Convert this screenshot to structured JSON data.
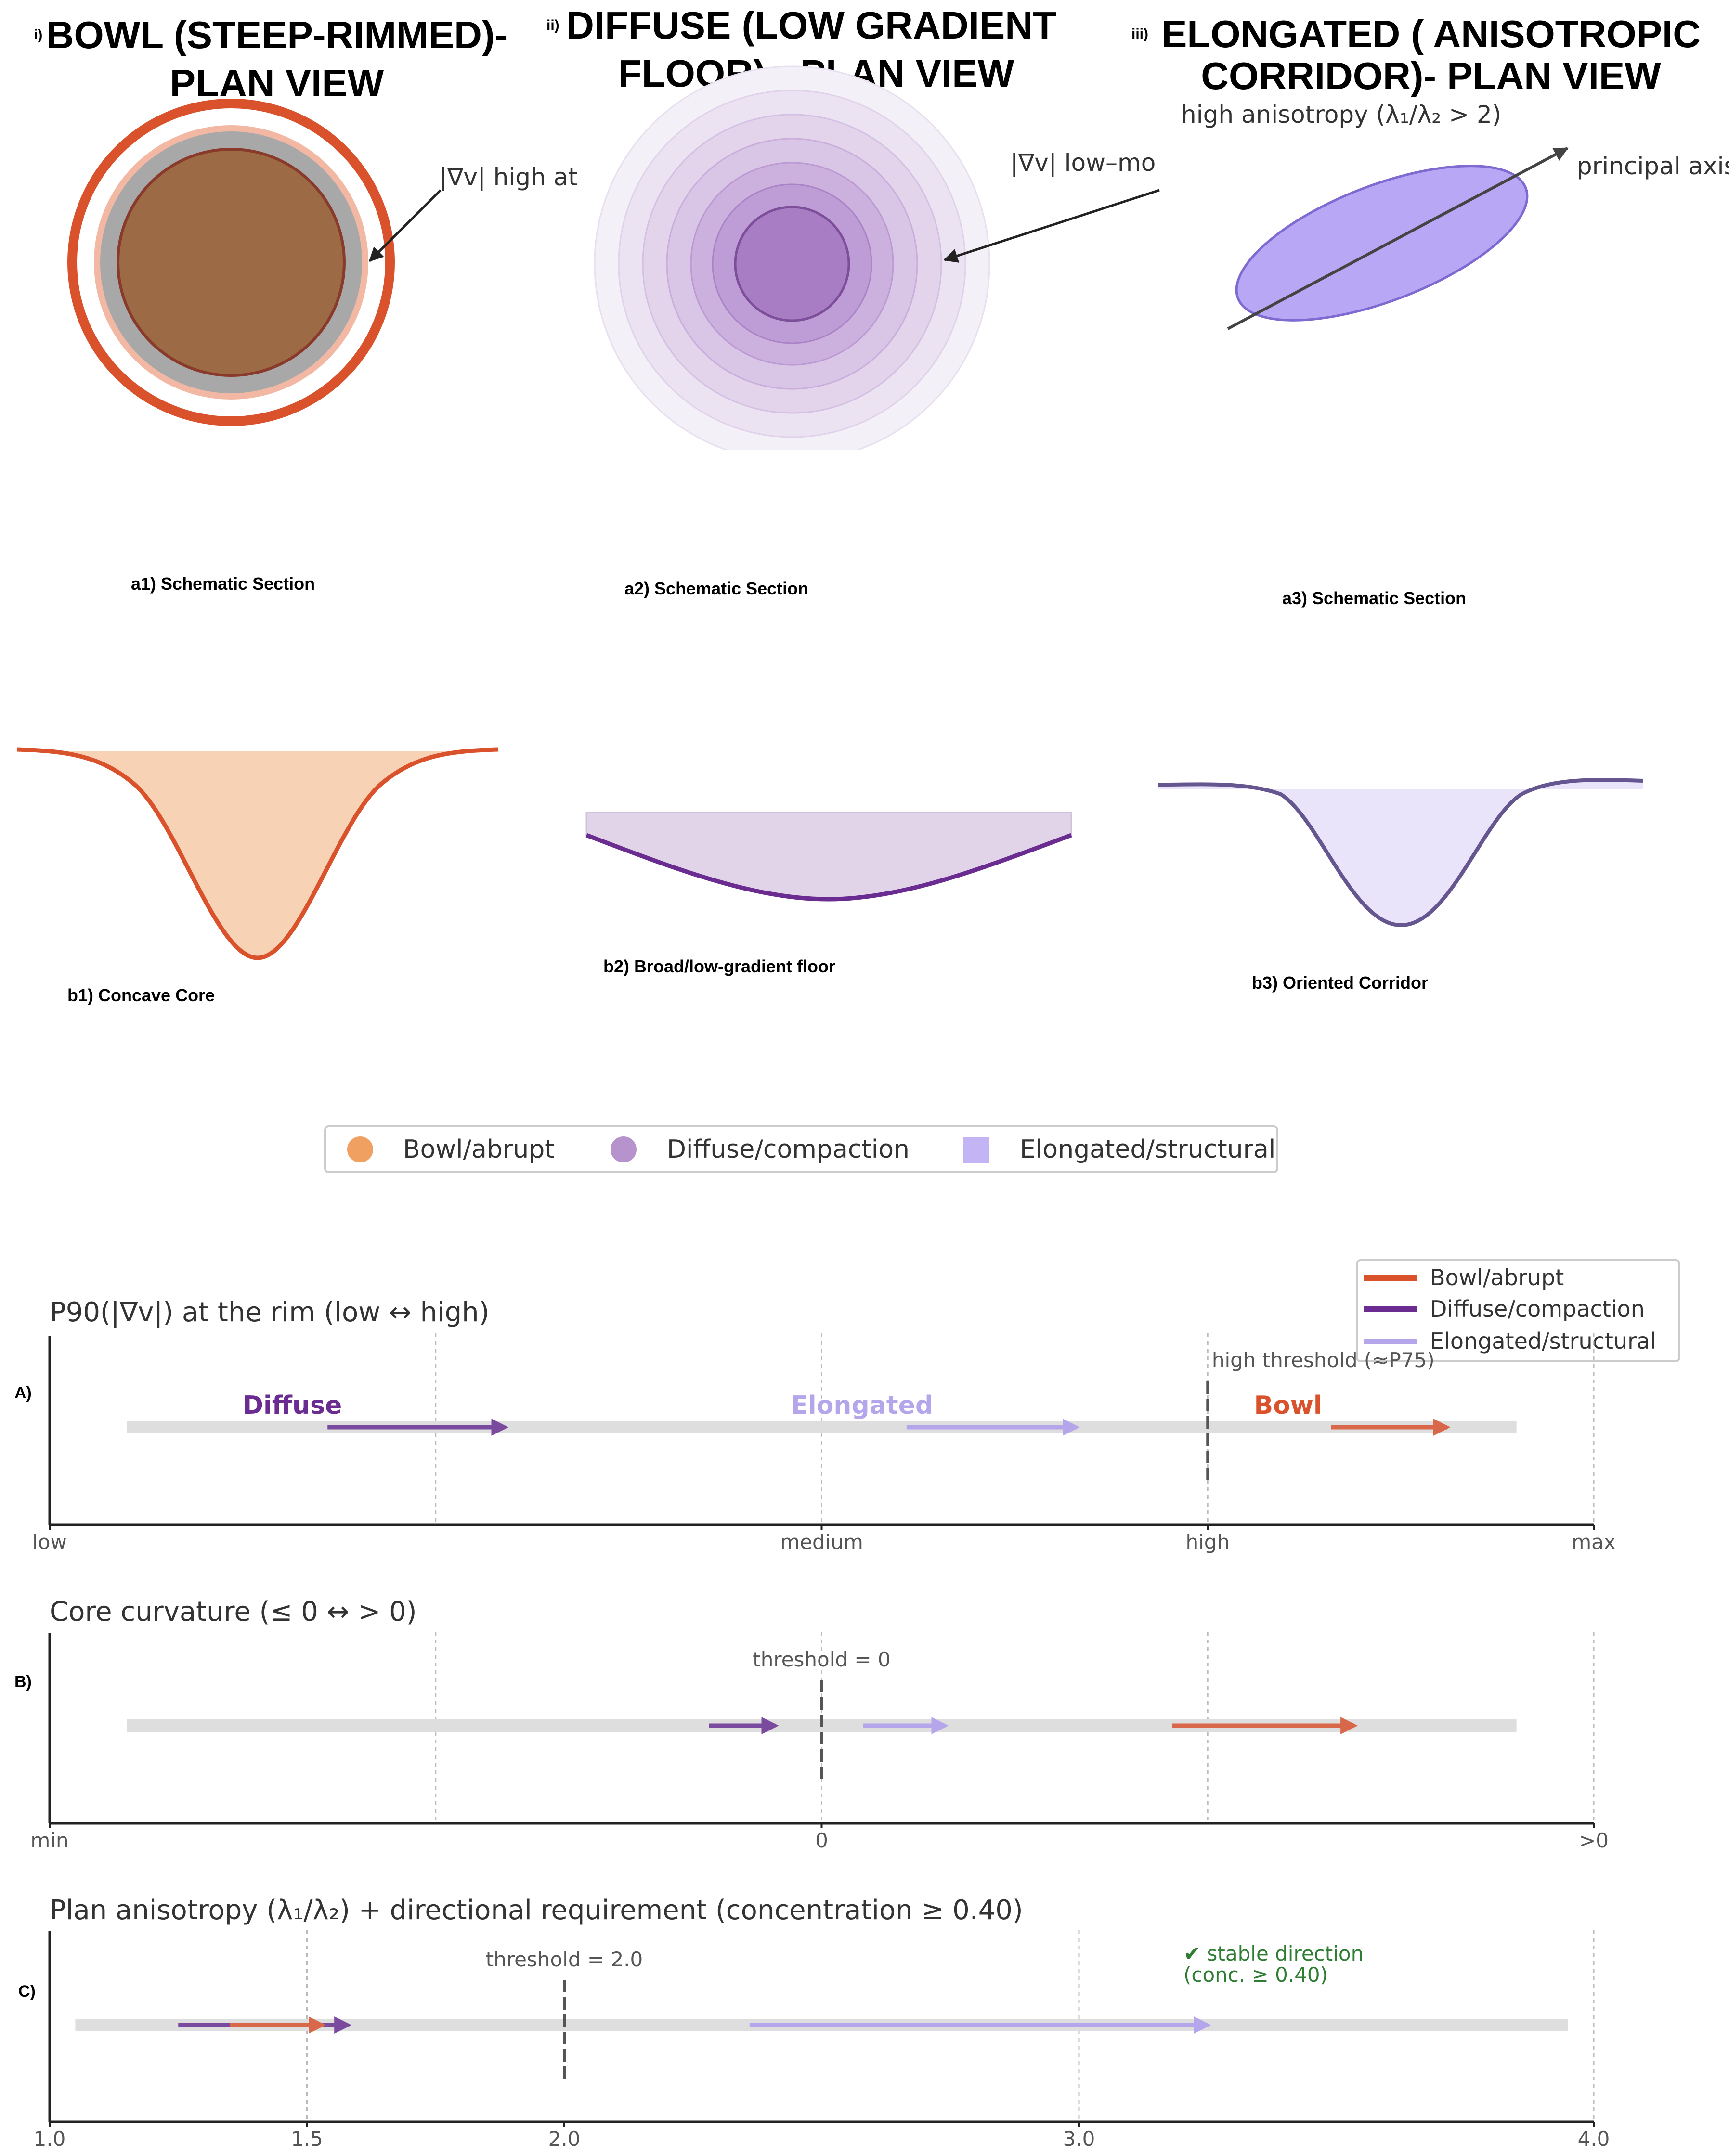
{
  "colors": {
    "bowl": "#d9522b",
    "bowl_fill": "#f8d2b4",
    "bowl_core": "#9c6a45",
    "diffuse": "#6a2c91",
    "diffuse_fill": "#e2d4e8",
    "elong": "#b5a6ec",
    "elong_line": "#66568f",
    "elong_fill": "#eae4fb",
    "track": "#dedede"
  },
  "panels": {
    "p1": {
      "roman": "i)",
      "title_l1": "BOWL (STEEP-RIMMED)-",
      "title_l2": "PLAN VIEW",
      "annotation": "|∇v| high at",
      "section_caption": "a1) Schematic Section",
      "profile_caption": "b1) Concave Core"
    },
    "p2": {
      "roman": "ii)",
      "title_l1": "DIFFUSE (LOW GRADIENT",
      "title_l2": "FLOOR) - PLAN VIEW",
      "annotation": "|∇v| low–mo",
      "section_caption": "a2) Schematic Section",
      "profile_caption": "b2) Broad/low-gradient floor"
    },
    "p3": {
      "roman": "iii)",
      "title_l1": "ELONGATED ( ANISOTROPIC",
      "title_l2": "CORRIDOR)- PLAN VIEW",
      "annotation_top": "high anisotropy  (λ₁/λ₂ > 2)",
      "annotation_axis": "principal axis",
      "section_caption": "a3) Schematic Section",
      "profile_caption": "b3) Oriented Corridor"
    }
  },
  "legend_top": [
    {
      "label": "Bowl/abrupt",
      "marker": "circle",
      "color": "#f0a060"
    },
    {
      "label": "Diffuse/compaction",
      "marker": "circle",
      "color": "#b693cc"
    },
    {
      "label": "Elongated/structural",
      "marker": "square",
      "color": "#c3b5f5"
    }
  ],
  "legend_lines": [
    {
      "label": "Bowl/abrupt",
      "color": "#d9522b"
    },
    {
      "label": "Diffuse/compaction",
      "color": "#6a2c91"
    },
    {
      "label": "Elongated/structural",
      "color": "#b5a6ec"
    }
  ],
  "chart_data": [
    {
      "type": "arrow-range",
      "panel_label": "A)",
      "title": "P90(|∇v|) at the rim (low  ↔  high)",
      "xlim": [
        0,
        1
      ],
      "ticks": [
        {
          "value": 0,
          "label": "low"
        },
        {
          "value": 0.5,
          "label": "medium"
        },
        {
          "value": 0.75,
          "label": "high"
        },
        {
          "value": 1,
          "label": "max"
        }
      ],
      "gridlines": [
        0.25,
        0.5,
        0.75,
        1.0
      ],
      "track": [
        0.05,
        0.95
      ],
      "threshold": {
        "value": 0.75,
        "label": "high threshold (≈P75)"
      },
      "series": [
        {
          "name": "Diffuse",
          "label": "Diffuse",
          "from": 0.18,
          "to": 0.295,
          "color": "#6a2c91",
          "label_at": 0.125
        },
        {
          "name": "Elongated",
          "label": "Elongated",
          "from": 0.555,
          "to": 0.665,
          "color": "#b5a6ec",
          "label_at": 0.48
        },
        {
          "name": "Bowl",
          "label": "Bowl",
          "from": 0.83,
          "to": 0.905,
          "color": "#d9522b",
          "label_at": 0.78
        }
      ]
    },
    {
      "type": "arrow-range",
      "panel_label": "B)",
      "title": "Core curvature (≤ 0  ↔  > 0)",
      "xlim": [
        -1,
        1
      ],
      "ticks": [
        {
          "value": -1,
          "label": "min"
        },
        {
          "value": 0,
          "label": "0"
        },
        {
          "value": 1,
          "label": ">0"
        }
      ],
      "gridlines": [
        -0.5,
        0,
        0.5,
        1.0
      ],
      "track": [
        -0.9,
        0.9
      ],
      "threshold": {
        "value": 0,
        "label": "threshold = 0"
      },
      "series": [
        {
          "name": "Diffuse",
          "from": -0.146,
          "to": -0.06,
          "color": "#6a2c91"
        },
        {
          "name": "Elongated",
          "from": 0.054,
          "to": 0.16,
          "color": "#b5a6ec"
        },
        {
          "name": "Bowl",
          "from": 0.454,
          "to": 0.69,
          "color": "#d9522b"
        }
      ]
    },
    {
      "type": "arrow-range",
      "panel_label": "C)",
      "title": "Plan anisotropy (λ₁/λ₂) + directional requirement (concentration ≥ 0.40)",
      "xlim": [
        1.0,
        4.0
      ],
      "ticks": [
        {
          "value": 1.0,
          "label": "1.0"
        },
        {
          "value": 1.5,
          "label": "1.5"
        },
        {
          "value": 2.0,
          "label": "2.0"
        },
        {
          "value": 3.0,
          "label": "3.0"
        },
        {
          "value": 4.0,
          "label": "4.0"
        }
      ],
      "gridlines": [
        1.5,
        3.0,
        4.0
      ],
      "track": [
        1.05,
        3.95
      ],
      "threshold": {
        "value": 2.0,
        "label": "threshold = 2.0"
      },
      "note_line1": "✔ stable direction",
      "note_line2": "(conc. ≥ 0.40)",
      "series": [
        {
          "name": "Diffuse",
          "from": 1.25,
          "to": 1.58,
          "color": "#6a2c91"
        },
        {
          "name": "Bowl",
          "from": 1.35,
          "to": 1.53,
          "color": "#d9522b"
        },
        {
          "name": "Elongated",
          "from": 2.36,
          "to": 3.25,
          "color": "#b5a6ec"
        }
      ]
    }
  ]
}
